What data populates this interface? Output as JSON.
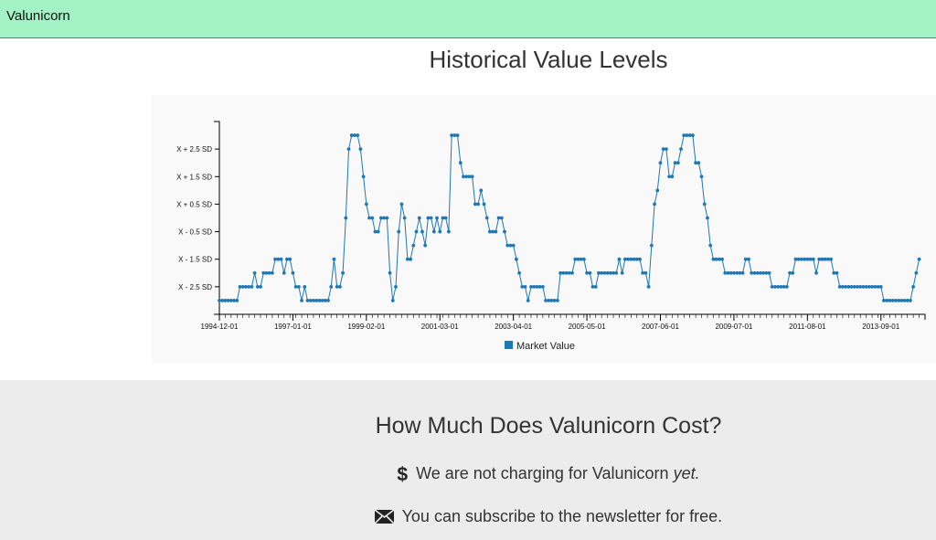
{
  "header": {
    "brand": "Valunicorn"
  },
  "chart": {
    "title": "Historical Value Levels"
  },
  "colors": {
    "navbar": "#a2f2c6",
    "series": "#1f77b4",
    "panel": "#f9f9f9",
    "pricing_bg": "#ececec"
  },
  "chart_data": {
    "type": "line",
    "title": "Historical Value Levels",
    "xlabel": "",
    "ylabel": "",
    "y_tick_labels": [
      "X - 2.5 SD",
      "X - 1.5 SD",
      "X - 0.5 SD",
      "X + 0.5 SD",
      "X + 1.5 SD",
      "X + 2.5 SD"
    ],
    "x_tick_labels": [
      "1994-12-01",
      "1997-01-01",
      "1999-02-01",
      "2001-03-01",
      "2003-04-01",
      "2005-05-01",
      "2007-06-01",
      "2009-07-01",
      "2011-08-01",
      "2013-09-01"
    ],
    "x_range": [
      "1994-12-01",
      "2014-12-01"
    ],
    "ylim": [
      -3.5,
      3.5
    ],
    "legend_position": "bottom-center",
    "grid": false,
    "series": [
      {
        "name": "Market Value",
        "color": "#1f77b4",
        "start": "1994-12-01",
        "step_months": 1,
        "values": [
          -3,
          -3,
          -3,
          -3,
          -3,
          -3,
          -3,
          -2.5,
          -2.5,
          -2.5,
          -2.5,
          -2.5,
          -2,
          -2.5,
          -2.5,
          -2,
          -2,
          -2,
          -2,
          -1.5,
          -1.5,
          -1.5,
          -2,
          -1.5,
          -1.5,
          -2,
          -2.5,
          -2.5,
          -3,
          -2.5,
          -3,
          -3,
          -3,
          -3,
          -3,
          -3,
          -3,
          -3,
          -2.5,
          -1.5,
          -2.5,
          -2.5,
          -2,
          0,
          2.5,
          3,
          3,
          3,
          2.5,
          1.5,
          0.5,
          0,
          0,
          -0.5,
          -0.5,
          0,
          0,
          0,
          -2,
          -3,
          -2.5,
          -0.5,
          0.5,
          0,
          -1.5,
          -1.5,
          -1,
          -0.5,
          0,
          -0.5,
          -1,
          0,
          0,
          -0.5,
          0,
          -0.5,
          0,
          0,
          -0.5,
          3,
          3,
          3,
          2,
          1.5,
          1.5,
          1.5,
          1.5,
          0.5,
          0.5,
          1,
          0.5,
          0,
          -0.5,
          -0.5,
          -0.5,
          0,
          0,
          -0.5,
          -1,
          -1,
          -1,
          -1.5,
          -2,
          -2.5,
          -2.5,
          -3,
          -2.5,
          -2.5,
          -2.5,
          -2.5,
          -2.5,
          -3,
          -3,
          -3,
          -3,
          -3,
          -2,
          -2,
          -2,
          -2,
          -2,
          -1.5,
          -1.5,
          -1.5,
          -1.5,
          -2,
          -2,
          -2.5,
          -2.5,
          -2,
          -2,
          -2,
          -2,
          -2,
          -2,
          -2,
          -1.5,
          -2,
          -1.5,
          -1.5,
          -1.5,
          -1.5,
          -1.5,
          -1.5,
          -2,
          -2,
          -2.5,
          -1,
          0.5,
          1,
          2,
          2.5,
          2.5,
          1.5,
          1.5,
          2,
          2,
          2.5,
          3,
          3,
          3,
          3,
          2,
          2,
          1.5,
          0.5,
          0,
          -1,
          -1.5,
          -1.5,
          -1.5,
          -1.5,
          -2,
          -2,
          -2,
          -2,
          -2,
          -2,
          -2,
          -1.5,
          -1.5,
          -2,
          -2,
          -2,
          -2,
          -2,
          -2,
          -2,
          -2.5,
          -2.5,
          -2.5,
          -2.5,
          -2.5,
          -2.5,
          -2,
          -2,
          -1.5,
          -1.5,
          -1.5,
          -1.5,
          -1.5,
          -1.5,
          -1.5,
          -2,
          -1.5,
          -1.5,
          -1.5,
          -1.5,
          -1.5,
          -2,
          -2,
          -2.5,
          -2.5,
          -2.5,
          -2.5,
          -2.5,
          -2.5,
          -2.5,
          -2.5,
          -2.5,
          -2.5,
          -2.5,
          -2.5,
          -2.5,
          -2.5,
          -2.5,
          -3,
          -3,
          -3,
          -3,
          -3,
          -3,
          -3,
          -3,
          -3,
          -3,
          -2.5,
          -2,
          -1.5
        ]
      }
    ]
  },
  "pricing": {
    "title": "How Much Does Valunicorn Cost?",
    "price_line_prefix": "We are not charging for Valunicorn",
    "price_line_emphasis": "yet.",
    "newsletter_line": "You can subscribe to the newsletter for free.",
    "icons": {
      "price": "dollar-icon",
      "newsletter": "envelope-icon"
    },
    "dollar_glyph": "$"
  }
}
